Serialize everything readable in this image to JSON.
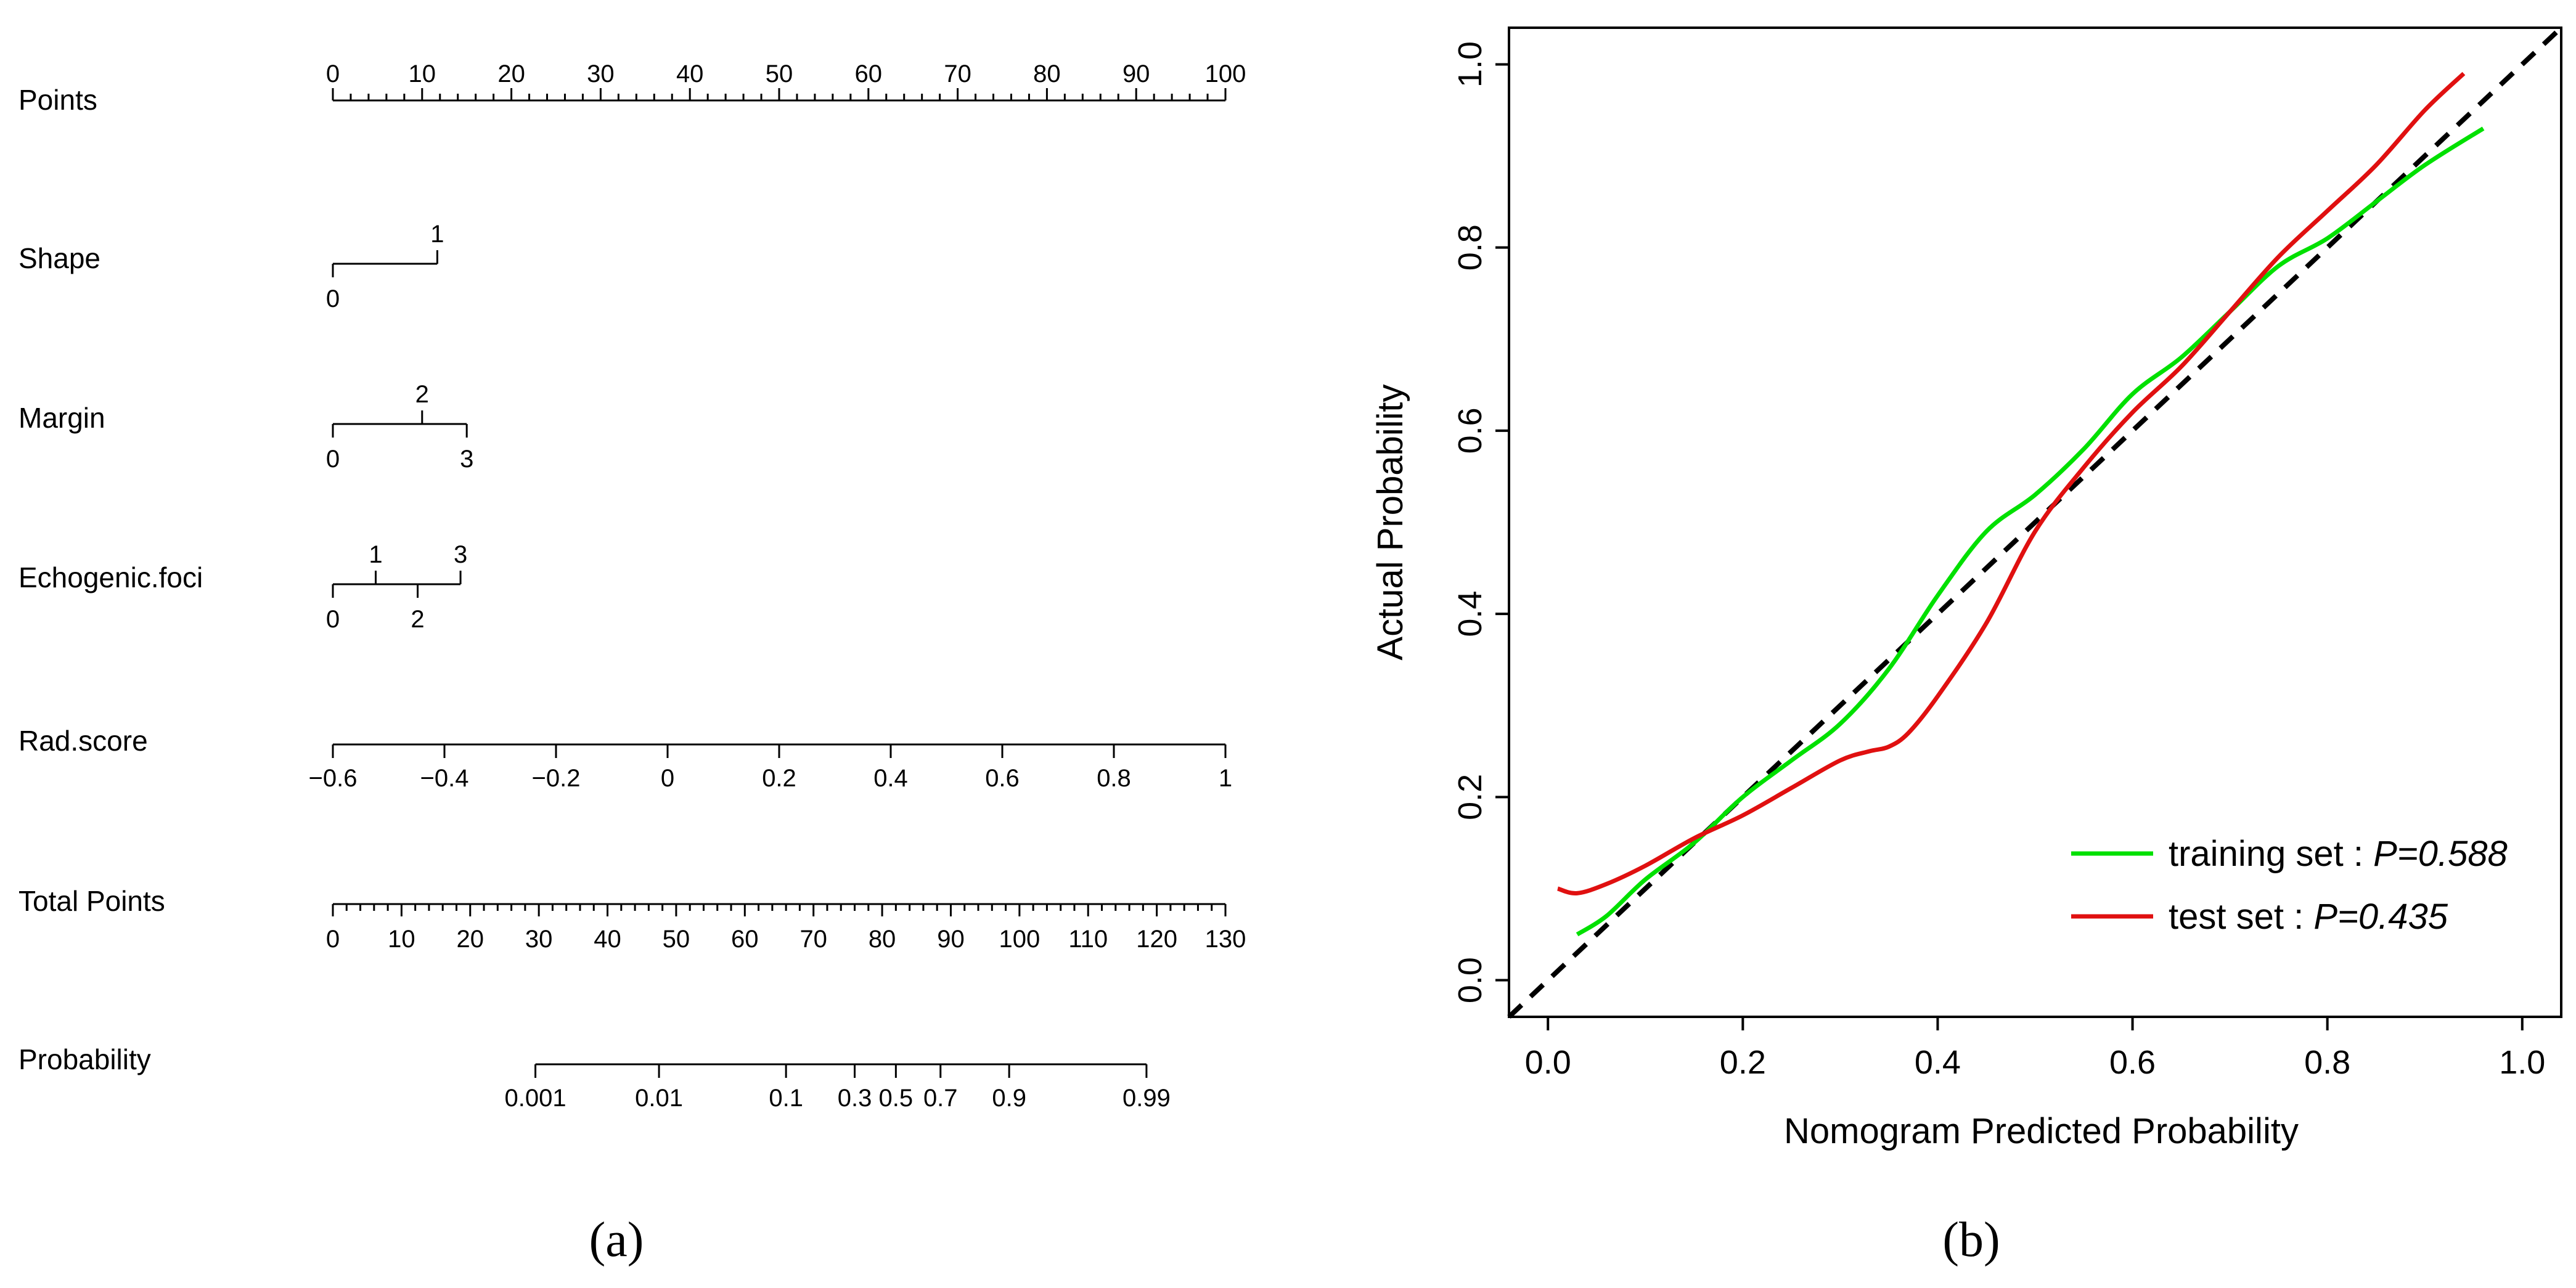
{
  "chart_data": [
    {
      "type": "nomogram",
      "panel_label": "(a)",
      "rows": [
        {
          "name": "Points",
          "ticks": [
            {
              "label": "0",
              "value": 0
            },
            {
              "label": "10",
              "value": 10
            },
            {
              "label": "20",
              "value": 20
            },
            {
              "label": "30",
              "value": 30
            },
            {
              "label": "40",
              "value": 40
            },
            {
              "label": "50",
              "value": 50
            },
            {
              "label": "60",
              "value": 60
            },
            {
              "label": "70",
              "value": 70
            },
            {
              "label": "80",
              "value": 80
            },
            {
              "label": "90",
              "value": 90
            },
            {
              "label": "100",
              "value": 100
            }
          ]
        },
        {
          "name": "Shape",
          "ticks": [
            {
              "label": "0",
              "points": 0,
              "pos": "below"
            },
            {
              "label": "1",
              "points": 11.7,
              "pos": "above"
            }
          ]
        },
        {
          "name": "Margin",
          "ticks": [
            {
              "label": "0",
              "points": 0,
              "pos": "below"
            },
            {
              "label": "2",
              "points": 10.0,
              "pos": "above"
            },
            {
              "label": "3",
              "points": 15.0,
              "pos": "below"
            }
          ]
        },
        {
          "name": "Echogenic.foci",
          "ticks": [
            {
              "label": "0",
              "points": 0,
              "pos": "below"
            },
            {
              "label": "1",
              "points": 4.8,
              "pos": "above"
            },
            {
              "label": "2",
              "points": 9.5,
              "pos": "below"
            },
            {
              "label": "3",
              "points": 14.3,
              "pos": "above"
            }
          ]
        },
        {
          "name": "Rad.score",
          "ticks": [
            {
              "label": "−0.6",
              "points": 0
            },
            {
              "label": "−0.4",
              "points": 12.5
            },
            {
              "label": "−0.2",
              "points": 25.0
            },
            {
              "label": "0",
              "points": 37.5
            },
            {
              "label": "0.2",
              "points": 50.0
            },
            {
              "label": "0.4",
              "points": 62.5
            },
            {
              "label": "0.6",
              "points": 75.0
            },
            {
              "label": "0.8",
              "points": 87.5
            },
            {
              "label": "1",
              "points": 100.0
            }
          ]
        },
        {
          "name": "Total Points",
          "ticks": [
            {
              "label": "0",
              "value": 0
            },
            {
              "label": "10",
              "value": 10
            },
            {
              "label": "20",
              "value": 20
            },
            {
              "label": "30",
              "value": 30
            },
            {
              "label": "40",
              "value": 40
            },
            {
              "label": "50",
              "value": 50
            },
            {
              "label": "60",
              "value": 60
            },
            {
              "label": "70",
              "value": 70
            },
            {
              "label": "80",
              "value": 80
            },
            {
              "label": "90",
              "value": 90
            },
            {
              "label": "100",
              "value": 100
            },
            {
              "label": "110",
              "value": 110
            },
            {
              "label": "120",
              "value": 120
            },
            {
              "label": "130",
              "value": 130
            }
          ]
        },
        {
          "name": "Probability",
          "ticks": [
            {
              "label": "0.001",
              "total_points": 29.5
            },
            {
              "label": "0.01",
              "total_points": 47.5
            },
            {
              "label": "0.1",
              "total_points": 66.0
            },
            {
              "label": "0.3",
              "total_points": 76.0
            },
            {
              "label": "0.5",
              "total_points": 82.0
            },
            {
              "label": "0.7",
              "total_points": 88.5
            },
            {
              "label": "0.9",
              "total_points": 98.5
            },
            {
              "label": "0.99",
              "total_points": 118.5
            }
          ]
        }
      ]
    },
    {
      "type": "line",
      "panel_label": "(b)",
      "title": "",
      "xlabel": "Nomogram Predicted Probability",
      "ylabel": "Actual Probability",
      "xlim": [
        -0.04,
        1.04
      ],
      "ylim": [
        -0.04,
        1.04
      ],
      "xticks": [
        {
          "value": 0.0,
          "label": "0.0"
        },
        {
          "value": 0.2,
          "label": "0.2"
        },
        {
          "value": 0.4,
          "label": "0.4"
        },
        {
          "value": 0.6,
          "label": "0.6"
        },
        {
          "value": 0.8,
          "label": "0.8"
        },
        {
          "value": 1.0,
          "label": "1.0"
        }
      ],
      "yticks": [
        {
          "value": 0.0,
          "label": "0.0"
        },
        {
          "value": 0.2,
          "label": "0.2"
        },
        {
          "value": 0.4,
          "label": "0.4"
        },
        {
          "value": 0.6,
          "label": "0.6"
        },
        {
          "value": 0.8,
          "label": "0.8"
        },
        {
          "value": 1.0,
          "label": "1.0"
        }
      ],
      "reference_line": {
        "name": "ideal",
        "x": [
          -0.04,
          1.04
        ],
        "y": [
          -0.04,
          1.04
        ],
        "style": "dashed",
        "color": "#000000"
      },
      "legend_position": "bottom-right",
      "series": [
        {
          "name": "training set",
          "legend_prefix": "training set : ",
          "p_label": "P=0.588",
          "color": "#00e000",
          "x": [
            0.03,
            0.06,
            0.1,
            0.15,
            0.2,
            0.25,
            0.3,
            0.35,
            0.4,
            0.45,
            0.5,
            0.55,
            0.6,
            0.65,
            0.7,
            0.75,
            0.8,
            0.85,
            0.9,
            0.96
          ],
          "y": [
            0.05,
            0.07,
            0.11,
            0.15,
            0.2,
            0.24,
            0.28,
            0.34,
            0.42,
            0.49,
            0.53,
            0.58,
            0.64,
            0.68,
            0.73,
            0.78,
            0.81,
            0.85,
            0.89,
            0.93
          ]
        },
        {
          "name": "test set",
          "legend_prefix": "test set : ",
          "p_label": "P=0.435",
          "color": "#e01010",
          "x": [
            0.01,
            0.03,
            0.06,
            0.1,
            0.15,
            0.2,
            0.25,
            0.3,
            0.33,
            0.35,
            0.37,
            0.4,
            0.45,
            0.5,
            0.55,
            0.6,
            0.65,
            0.7,
            0.75,
            0.8,
            0.85,
            0.9,
            0.94
          ],
          "y": [
            0.1,
            0.095,
            0.105,
            0.125,
            0.155,
            0.18,
            0.21,
            0.24,
            0.25,
            0.255,
            0.27,
            0.31,
            0.39,
            0.49,
            0.56,
            0.62,
            0.67,
            0.73,
            0.79,
            0.84,
            0.89,
            0.95,
            0.99
          ]
        }
      ]
    }
  ],
  "captions": {
    "a": "(a)",
    "b": "(b)"
  }
}
